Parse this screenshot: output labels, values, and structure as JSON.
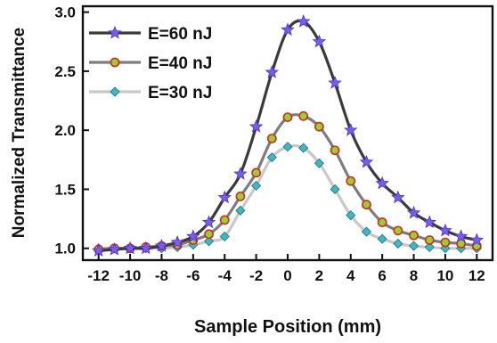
{
  "chart_data": {
    "type": "line",
    "xlabel": "Sample Position (mm)",
    "ylabel": "Normalized Transmittance",
    "xlim": [
      -13,
      13
    ],
    "ylim": [
      0.9,
      3.05
    ],
    "xticks": [
      "-12",
      "-10",
      "-8",
      "-6",
      "-4",
      "-2",
      "0",
      "2",
      "4",
      "6",
      "8",
      "10",
      "12"
    ],
    "yticks": [
      "1.0",
      "1.5",
      "2.0",
      "2.5",
      "3.0"
    ],
    "grid": false,
    "legend_position": "top-left",
    "x": [
      -12,
      -11,
      -10,
      -9,
      -8,
      -7,
      -6,
      -5,
      -4,
      -3,
      -2,
      -1,
      0,
      1,
      2,
      3,
      4,
      5,
      6,
      7,
      8,
      9,
      10,
      11,
      12
    ],
    "series": [
      {
        "name": "E=60 nJ",
        "color": "#3a3a3a",
        "marker": "star",
        "marker_color": "#7b5cf0",
        "values": [
          0.98,
          0.99,
          1.0,
          1.0,
          1.02,
          1.05,
          1.1,
          1.22,
          1.43,
          1.63,
          2.03,
          2.49,
          2.85,
          2.92,
          2.75,
          2.4,
          2.0,
          1.73,
          1.55,
          1.43,
          1.3,
          1.22,
          1.15,
          1.1,
          1.07
        ]
      },
      {
        "name": "E=40 nJ",
        "color": "#7d7d7d",
        "marker": "circle",
        "marker_color": "#9acd32",
        "values": [
          0.99,
          1.0,
          1.0,
          1.01,
          1.02,
          1.03,
          1.07,
          1.12,
          1.24,
          1.44,
          1.64,
          1.93,
          2.11,
          2.12,
          2.03,
          1.83,
          1.57,
          1.37,
          1.22,
          1.15,
          1.11,
          1.07,
          1.05,
          1.04,
          1.02
        ]
      },
      {
        "name": "E=30 nJ",
        "color": "#c8c8c8",
        "marker": "diamond",
        "marker_color": "#3fb7c4",
        "values": [
          1.0,
          1.0,
          1.0,
          1.0,
          1.0,
          1.01,
          1.03,
          1.06,
          1.1,
          1.32,
          1.53,
          1.77,
          1.86,
          1.85,
          1.72,
          1.5,
          1.28,
          1.14,
          1.08,
          1.04,
          1.02,
          1.01,
          1.0,
          1.0,
          1.0
        ]
      }
    ]
  }
}
